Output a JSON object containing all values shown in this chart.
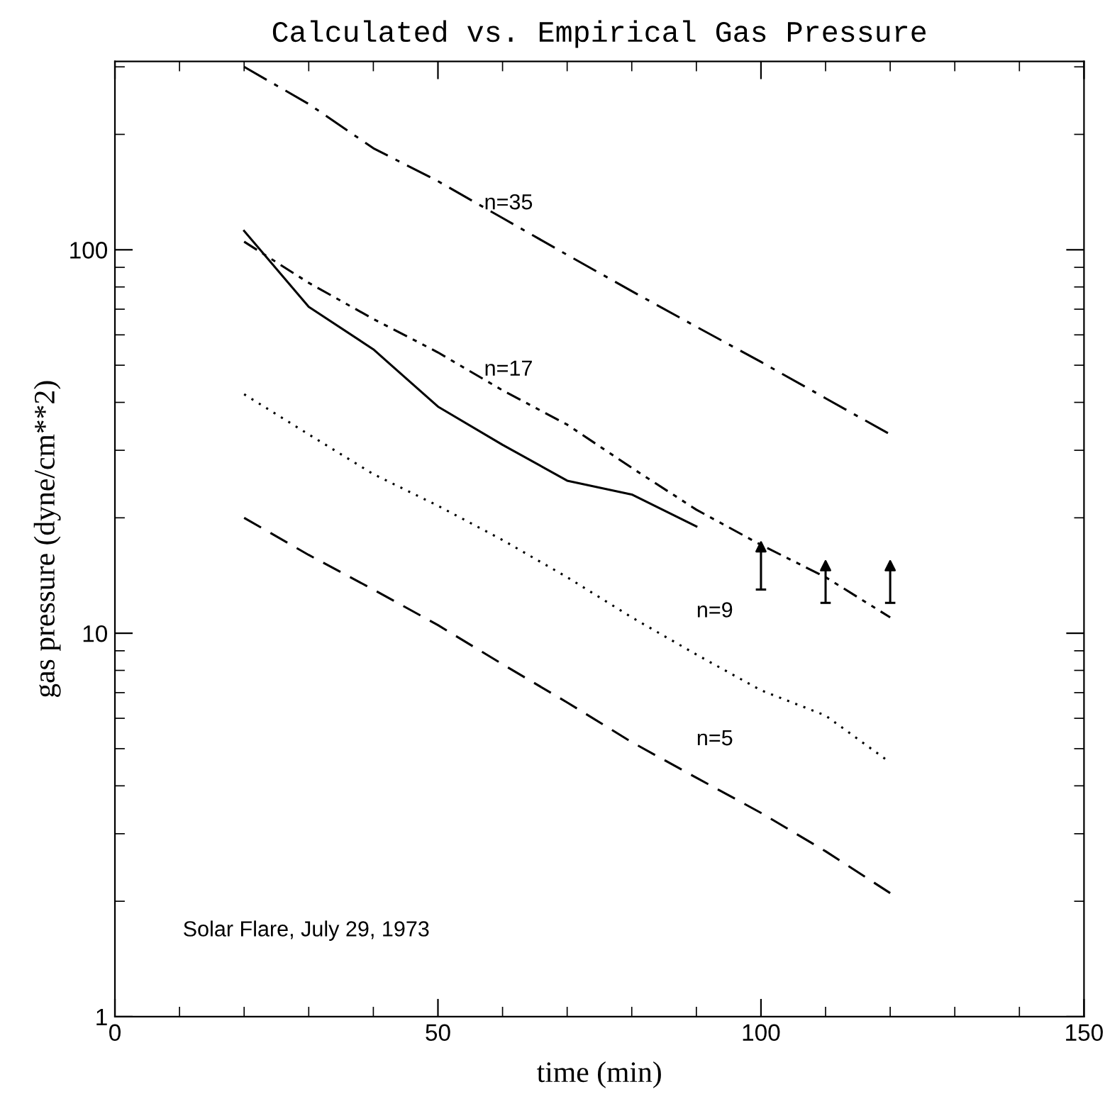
{
  "chart_data": {
    "type": "line",
    "title": "Calculated vs. Empirical Gas Pressure",
    "xlabel": "time (min)",
    "ylabel": "gas pressure (dyne/cm**2)",
    "x": [
      20,
      30,
      40,
      50,
      60,
      70,
      80,
      90,
      100,
      110,
      120
    ],
    "series": [
      {
        "color": "#000000",
        "line_style": "dashdot",
        "values": [
          300,
          240,
          184,
          151,
          121,
          97,
          78,
          63,
          51,
          41,
          33
        ]
      },
      {
        "color": "#000000",
        "line_style": "dashdotdot",
        "values": [
          105,
          82,
          66,
          54,
          43,
          35,
          27,
          21,
          17,
          14,
          11
        ]
      },
      {
        "color": "#000000",
        "line_style": "solid",
        "x": [
          20,
          30,
          40,
          50,
          60,
          70,
          80,
          90
        ],
        "values": [
          112,
          71,
          55,
          39,
          31,
          25,
          23,
          19
        ]
      },
      {
        "color": "#000000",
        "line_style": "dotted",
        "values": [
          42,
          33,
          26,
          21.5,
          17.5,
          14,
          11,
          8.8,
          7.1,
          6.1,
          4.6
        ]
      },
      {
        "color": "#000000",
        "line_style": "dashed",
        "values": [
          20,
          16,
          13,
          10.5,
          8.3,
          6.6,
          5.2,
          4.2,
          3.4,
          2.7,
          2.1
        ]
      },
      {
        "type": "scatter",
        "color": "#000000",
        "marker": "triangle",
        "x": [
          100,
          110,
          120
        ],
        "values": [
          16.8,
          15,
          15
        ],
        "errors": [
          [
            13,
            16.8
          ],
          [
            12,
            15
          ],
          [
            12,
            15
          ]
        ]
      }
    ],
    "log": "y",
    "xlim": [
      0,
      150
    ],
    "ylim": [
      1,
      310
    ],
    "xticks": [
      0,
      50,
      100,
      150
    ],
    "yticks": [
      1,
      10,
      100
    ],
    "grid": false,
    "legend": false,
    "annotations": [
      "n=35",
      "n=17",
      "n=9",
      "n=5",
      "Solar Flare, July 29, 1973"
    ]
  }
}
